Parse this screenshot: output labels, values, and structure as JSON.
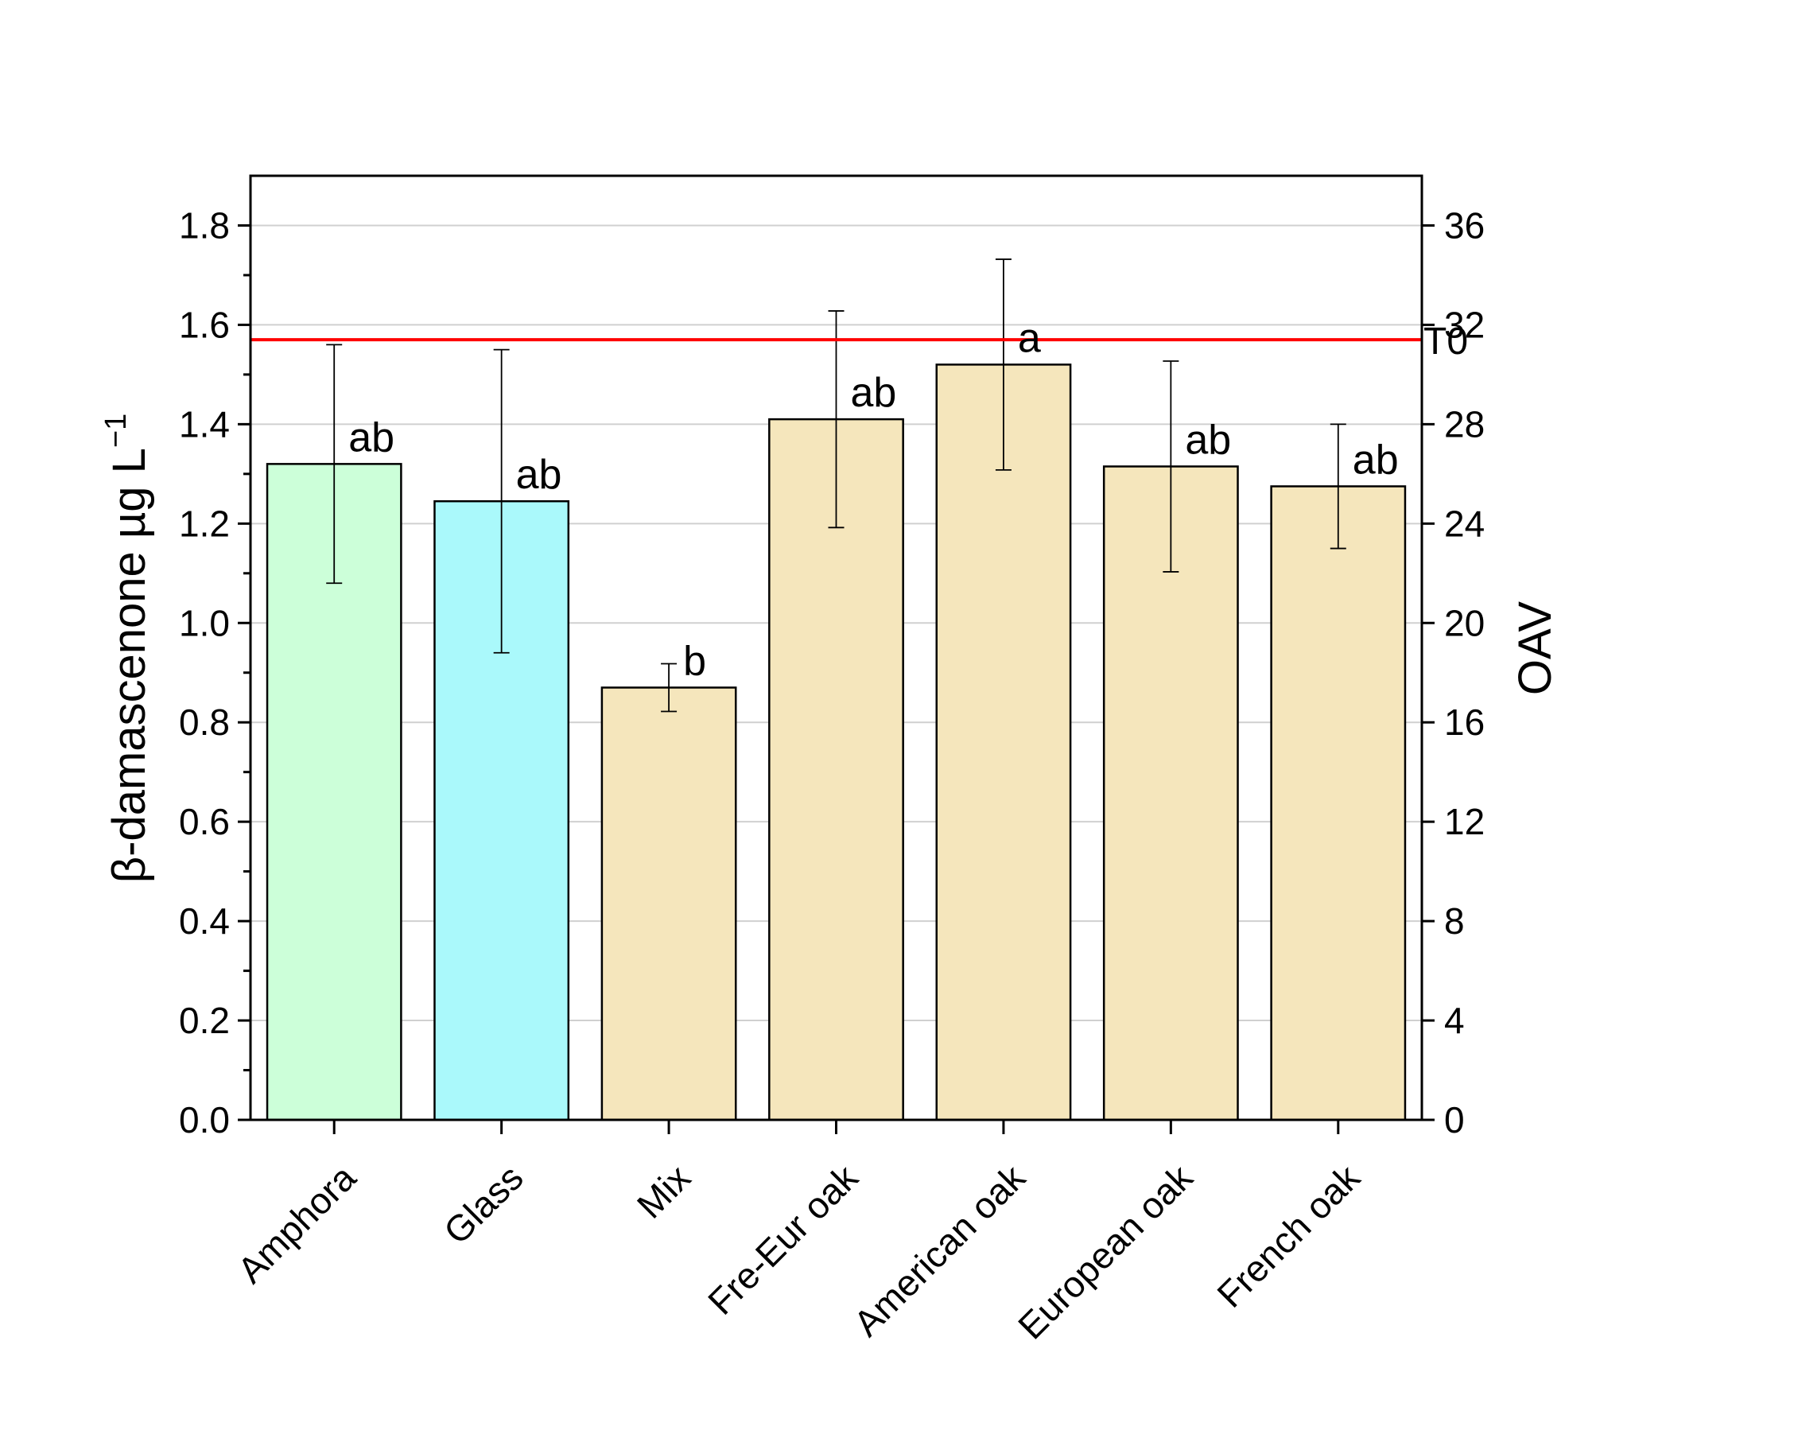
{
  "chart_data": {
    "type": "bar",
    "categories": [
      "Amphora",
      "Glass",
      "Mix",
      "Fre-Eur oak",
      "American oak",
      "European oak",
      "French oak"
    ],
    "values": [
      1.32,
      1.245,
      0.87,
      1.41,
      1.52,
      1.315,
      1.275
    ],
    "errors": [
      0.24,
      0.305,
      0.048,
      0.218,
      0.212,
      0.212,
      0.125
    ],
    "significance": [
      "ab",
      "ab",
      "b",
      "ab",
      "a",
      "ab",
      "ab"
    ],
    "bar_colors": [
      "#ccffd9",
      "#aaf9fb",
      "#f5e6bc",
      "#f5e6bc",
      "#f5e6bc",
      "#f5e6bc",
      "#f5e6bc"
    ],
    "ylabel": "β-damascenone µg L",
    "ylabel_superscript": "−1",
    "ylim": [
      0,
      1.9
    ],
    "yticks": [
      "0.0",
      "0.2",
      "0.4",
      "0.6",
      "0.8",
      "1.0",
      "1.2",
      "1.4",
      "1.6",
      "1.8"
    ],
    "y2label": "OAV",
    "y2lim": [
      0,
      38
    ],
    "y2ticks": [
      "0",
      "4",
      "8",
      "12",
      "16",
      "20",
      "24",
      "28",
      "32",
      "36"
    ],
    "reference_line": {
      "value": 1.57,
      "label": "T0",
      "color": "#ff0000"
    },
    "grid": true
  }
}
